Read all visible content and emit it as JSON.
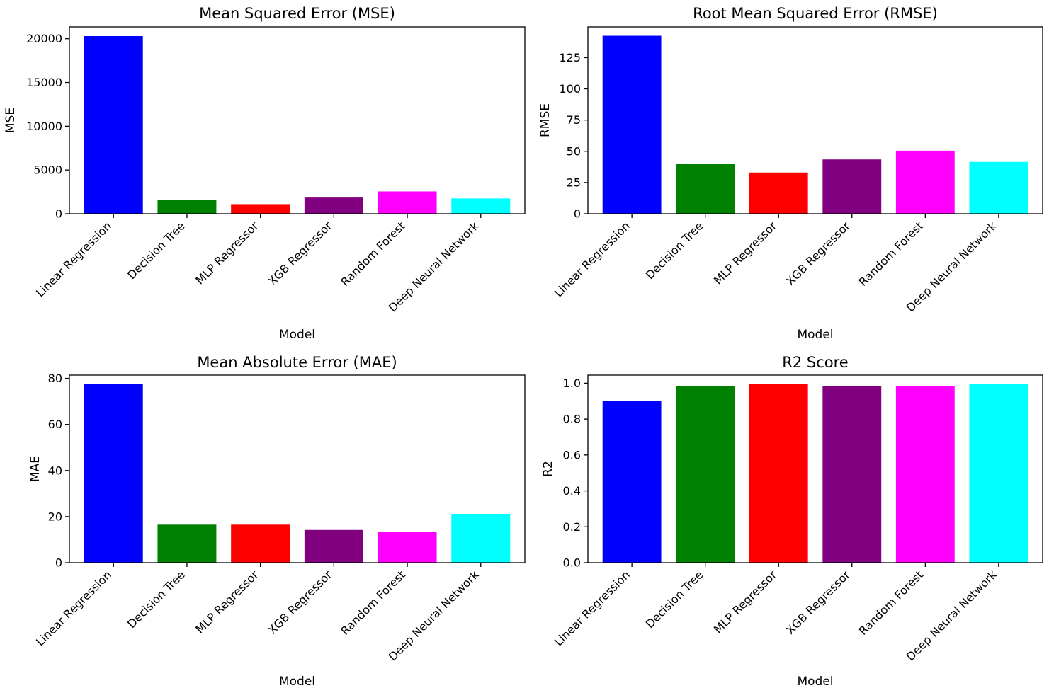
{
  "chart_data": [
    {
      "type": "bar",
      "title": "Mean Squared Error (MSE)",
      "xlabel": "Model",
      "ylabel": "MSE",
      "categories": [
        "Linear Regression",
        "Decision Tree",
        "MLP Regressor",
        "XGB Regressor",
        "Random Forest",
        "Deep Neural Network"
      ],
      "values": [
        20300,
        1600,
        1100,
        1850,
        2550,
        1750
      ],
      "colors": [
        "#0000ff",
        "#008000",
        "#ff0000",
        "#800080",
        "#ff00ff",
        "#00ffff"
      ],
      "ylim": [
        0,
        21350
      ],
      "yticks": [
        0,
        5000,
        10000,
        15000,
        20000
      ]
    },
    {
      "type": "bar",
      "title": "Root Mean Squared Error (RMSE)",
      "xlabel": "Model",
      "ylabel": "RMSE",
      "categories": [
        "Linear Regression",
        "Decision Tree",
        "MLP Regressor",
        "XGB Regressor",
        "Random Forest",
        "Deep Neural Network"
      ],
      "values": [
        142.5,
        40,
        33,
        43.5,
        50.5,
        41.5
      ],
      "colors": [
        "#0000ff",
        "#008000",
        "#ff0000",
        "#800080",
        "#ff00ff",
        "#00ffff"
      ],
      "ylim": [
        0,
        149.6
      ],
      "yticks": [
        0,
        25,
        50,
        75,
        100,
        125
      ]
    },
    {
      "type": "bar",
      "title": "Mean Absolute Error (MAE)",
      "xlabel": "Model",
      "ylabel": "MAE",
      "categories": [
        "Linear Regression",
        "Decision Tree",
        "MLP Regressor",
        "XGB Regressor",
        "Random Forest",
        "Deep Neural Network"
      ],
      "values": [
        77.5,
        16.5,
        16.5,
        14.2,
        13.5,
        21.2
      ],
      "colors": [
        "#0000ff",
        "#008000",
        "#ff0000",
        "#800080",
        "#ff00ff",
        "#00ffff"
      ],
      "ylim": [
        0,
        81.4
      ],
      "yticks": [
        0,
        20,
        40,
        60,
        80
      ]
    },
    {
      "type": "bar",
      "title": "R2 Score",
      "xlabel": "Model",
      "ylabel": "R2",
      "categories": [
        "Linear Regression",
        "Decision Tree",
        "MLP Regressor",
        "XGB Regressor",
        "Random Forest",
        "Deep Neural Network"
      ],
      "values": [
        0.9,
        0.985,
        0.995,
        0.985,
        0.985,
        0.995
      ],
      "colors": [
        "#0000ff",
        "#008000",
        "#ff0000",
        "#800080",
        "#ff00ff",
        "#00ffff"
      ],
      "ylim": [
        0,
        1.045
      ],
      "yticks": [
        0.0,
        0.2,
        0.4,
        0.6,
        0.8,
        1.0
      ],
      "ytick_labels": [
        "0.0",
        "0.2",
        "0.4",
        "0.6",
        "0.8",
        "1.0"
      ]
    }
  ]
}
